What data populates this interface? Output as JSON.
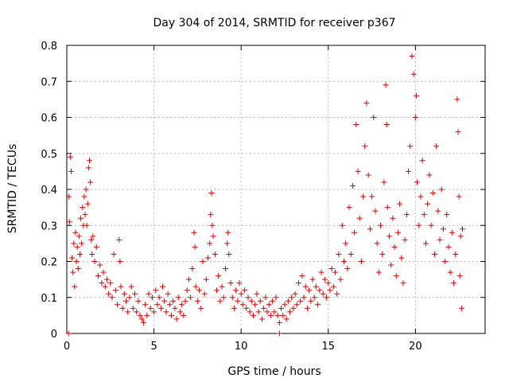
{
  "chart_data": {
    "type": "scatter",
    "title": "Day 304 of 2014, SRMTID for receiver p367",
    "xlabel": "GPS time / hours",
    "ylabel": "SRMTID / TECUs",
    "xlim": [
      0,
      24
    ],
    "ylim": [
      0,
      0.8
    ],
    "x_ticks": [
      0,
      5,
      10,
      15,
      20
    ],
    "y_ticks": [
      0,
      0.1,
      0.2,
      0.3,
      0.4,
      0.5,
      0.6,
      0.7,
      0.8
    ],
    "x_tick_labels": [
      "0",
      "5",
      "10",
      "15",
      "20"
    ],
    "y_tick_labels": [
      "0",
      "0.1",
      "0.2",
      "0.3",
      "0.4",
      "0.5",
      "0.6",
      "0.7",
      "0.8"
    ],
    "grid": true,
    "marker": "+",
    "colors": {
      "points": "#e00000",
      "grid": "#a0a0a0",
      "axes": "#000000"
    },
    "series": [
      {
        "name": "SRMTID",
        "points": [
          [
            0.1,
            0.0
          ],
          [
            0.12,
            0.38
          ],
          [
            0.15,
            0.31
          ],
          [
            0.2,
            0.49
          ],
          [
            0.25,
            0.45
          ],
          [
            0.3,
            0.21
          ],
          [
            0.35,
            0.17
          ],
          [
            0.4,
            0.25
          ],
          [
            0.45,
            0.13
          ],
          [
            0.5,
            0.28
          ],
          [
            0.55,
            0.2
          ],
          [
            0.6,
            0.24
          ],
          [
            0.65,
            0.18
          ],
          [
            0.7,
            0.27
          ],
          [
            0.75,
            0.22
          ],
          [
            0.8,
            0.32
          ],
          [
            0.85,
            0.25
          ],
          [
            0.9,
            0.35
          ],
          [
            0.95,
            0.3
          ],
          [
            1.0,
            0.38
          ],
          [
            1.05,
            0.33
          ],
          [
            1.1,
            0.4
          ],
          [
            1.15,
            0.3
          ],
          [
            1.2,
            0.36
          ],
          [
            1.25,
            0.46
          ],
          [
            1.3,
            0.48
          ],
          [
            1.35,
            0.42
          ],
          [
            1.4,
            0.26
          ],
          [
            1.45,
            0.22
          ],
          [
            1.5,
            0.27
          ],
          [
            1.6,
            0.2
          ],
          [
            1.7,
            0.24
          ],
          [
            1.8,
            0.16
          ],
          [
            1.9,
            0.19
          ],
          [
            2.0,
            0.14
          ],
          [
            2.1,
            0.17
          ],
          [
            2.2,
            0.13
          ],
          [
            2.3,
            0.15
          ],
          [
            2.4,
            0.11
          ],
          [
            2.5,
            0.14
          ],
          [
            2.6,
            0.1
          ],
          [
            2.7,
            0.22
          ],
          [
            2.8,
            0.12
          ],
          [
            2.9,
            0.08
          ],
          [
            3.0,
            0.26
          ],
          [
            3.05,
            0.2
          ],
          [
            3.1,
            0.13
          ],
          [
            3.2,
            0.07
          ],
          [
            3.3,
            0.11
          ],
          [
            3.4,
            0.09
          ],
          [
            3.5,
            0.06
          ],
          [
            3.6,
            0.1
          ],
          [
            3.7,
            0.13
          ],
          [
            3.8,
            0.07
          ],
          [
            3.9,
            0.11
          ],
          [
            4.0,
            0.06
          ],
          [
            4.1,
            0.09
          ],
          [
            4.2,
            0.05
          ],
          [
            4.3,
            0.04
          ],
          [
            4.4,
            0.03
          ],
          [
            4.5,
            0.08
          ],
          [
            4.6,
            0.05
          ],
          [
            4.7,
            0.11
          ],
          [
            4.8,
            0.07
          ],
          [
            4.9,
            0.1
          ],
          [
            5.0,
            0.06
          ],
          [
            5.1,
            0.12
          ],
          [
            5.2,
            0.08
          ],
          [
            5.3,
            0.1
          ],
          [
            5.4,
            0.07
          ],
          [
            5.5,
            0.13
          ],
          [
            5.6,
            0.09
          ],
          [
            5.7,
            0.06
          ],
          [
            5.8,
            0.11
          ],
          [
            5.9,
            0.08
          ],
          [
            6.0,
            0.05
          ],
          [
            6.1,
            0.09
          ],
          [
            6.2,
            0.07
          ],
          [
            6.3,
            0.04
          ],
          [
            6.4,
            0.1
          ],
          [
            6.5,
            0.06
          ],
          [
            6.6,
            0.08
          ],
          [
            6.7,
            0.05
          ],
          [
            6.8,
            0.09
          ],
          [
            6.9,
            0.12
          ],
          [
            7.0,
            0.15
          ],
          [
            7.1,
            0.1
          ],
          [
            7.2,
            0.18
          ],
          [
            7.3,
            0.28
          ],
          [
            7.35,
            0.24
          ],
          [
            7.4,
            0.13
          ],
          [
            7.5,
            0.09
          ],
          [
            7.6,
            0.12
          ],
          [
            7.7,
            0.07
          ],
          [
            7.8,
            0.2
          ],
          [
            7.9,
            0.11
          ],
          [
            8.0,
            0.15
          ],
          [
            8.1,
            0.21
          ],
          [
            8.2,
            0.25
          ],
          [
            8.25,
            0.33
          ],
          [
            8.3,
            0.39
          ],
          [
            8.35,
            0.3
          ],
          [
            8.4,
            0.27
          ],
          [
            8.5,
            0.22
          ],
          [
            8.6,
            0.12
          ],
          [
            8.7,
            0.16
          ],
          [
            8.8,
            0.09
          ],
          [
            8.9,
            0.13
          ],
          [
            9.0,
            0.1
          ],
          [
            9.1,
            0.18
          ],
          [
            9.2,
            0.25
          ],
          [
            9.25,
            0.28
          ],
          [
            9.3,
            0.22
          ],
          [
            9.4,
            0.14
          ],
          [
            9.5,
            0.1
          ],
          [
            9.6,
            0.07
          ],
          [
            9.7,
            0.12
          ],
          [
            9.8,
            0.09
          ],
          [
            9.9,
            0.14
          ],
          [
            10.0,
            0.11
          ],
          [
            10.1,
            0.08
          ],
          [
            10.2,
            0.12
          ],
          [
            10.3,
            0.07
          ],
          [
            10.4,
            0.1
          ],
          [
            10.5,
            0.06
          ],
          [
            10.6,
            0.09
          ],
          [
            10.7,
            0.05
          ],
          [
            10.8,
            0.08
          ],
          [
            10.9,
            0.11
          ],
          [
            11.0,
            0.06
          ],
          [
            11.1,
            0.09
          ],
          [
            11.2,
            0.04
          ],
          [
            11.3,
            0.07
          ],
          [
            11.4,
            0.1
          ],
          [
            11.5,
            0.06
          ],
          [
            11.6,
            0.08
          ],
          [
            11.7,
            0.05
          ],
          [
            11.8,
            0.09
          ],
          [
            11.9,
            0.06
          ],
          [
            12.0,
            0.1
          ],
          [
            12.1,
            0.05
          ],
          [
            12.2,
            0.03
          ],
          [
            12.3,
            0.07
          ],
          [
            12.4,
            0.05
          ],
          [
            12.5,
            0.08
          ],
          [
            12.6,
            0.04
          ],
          [
            12.7,
            0.09
          ],
          [
            12.8,
            0.06
          ],
          [
            12.9,
            0.1
          ],
          [
            13.0,
            0.07
          ],
          [
            13.1,
            0.11
          ],
          [
            13.2,
            0.08
          ],
          [
            13.3,
            0.14
          ],
          [
            13.4,
            0.09
          ],
          [
            13.5,
            0.16
          ],
          [
            13.6,
            0.1
          ],
          [
            13.7,
            0.13
          ],
          [
            13.8,
            0.07
          ],
          [
            13.9,
            0.12
          ],
          [
            14.0,
            0.09
          ],
          [
            14.1,
            0.15
          ],
          [
            14.2,
            0.1
          ],
          [
            14.3,
            0.13
          ],
          [
            14.4,
            0.08
          ],
          [
            14.5,
            0.12
          ],
          [
            14.6,
            0.17
          ],
          [
            14.7,
            0.11
          ],
          [
            14.8,
            0.15
          ],
          [
            14.9,
            0.1
          ],
          [
            15.0,
            0.14
          ],
          [
            15.1,
            0.12
          ],
          [
            15.2,
            0.18
          ],
          [
            15.3,
            0.13
          ],
          [
            15.4,
            0.17
          ],
          [
            15.5,
            0.11
          ],
          [
            15.6,
            0.22
          ],
          [
            15.7,
            0.15
          ],
          [
            15.8,
            0.3
          ],
          [
            15.9,
            0.2
          ],
          [
            16.0,
            0.25
          ],
          [
            16.1,
            0.18
          ],
          [
            16.2,
            0.35
          ],
          [
            16.3,
            0.22
          ],
          [
            16.4,
            0.41
          ],
          [
            16.5,
            0.28
          ],
          [
            16.6,
            0.58
          ],
          [
            16.7,
            0.45
          ],
          [
            16.8,
            0.32
          ],
          [
            16.9,
            0.2
          ],
          [
            17.0,
            0.38
          ],
          [
            17.1,
            0.52
          ],
          [
            17.2,
            0.64
          ],
          [
            17.3,
            0.44
          ],
          [
            17.4,
            0.29
          ],
          [
            17.5,
            0.38
          ],
          [
            17.6,
            0.6
          ],
          [
            17.7,
            0.34
          ],
          [
            17.8,
            0.25
          ],
          [
            17.9,
            0.17
          ],
          [
            18.0,
            0.3
          ],
          [
            18.1,
            0.22
          ],
          [
            18.2,
            0.42
          ],
          [
            18.3,
            0.69
          ],
          [
            18.35,
            0.58
          ],
          [
            18.4,
            0.35
          ],
          [
            18.5,
            0.27
          ],
          [
            18.6,
            0.19
          ],
          [
            18.7,
            0.32
          ],
          [
            18.8,
            0.24
          ],
          [
            18.9,
            0.16
          ],
          [
            19.0,
            0.28
          ],
          [
            19.1,
            0.36
          ],
          [
            19.2,
            0.21
          ],
          [
            19.3,
            0.14
          ],
          [
            19.4,
            0.26
          ],
          [
            19.5,
            0.33
          ],
          [
            19.6,
            0.45
          ],
          [
            19.7,
            0.52
          ],
          [
            19.8,
            0.77
          ],
          [
            19.9,
            0.72
          ],
          [
            20.0,
            0.6
          ],
          [
            20.05,
            0.66
          ],
          [
            20.1,
            0.42
          ],
          [
            20.2,
            0.3
          ],
          [
            20.3,
            0.38
          ],
          [
            20.4,
            0.48
          ],
          [
            20.5,
            0.33
          ],
          [
            20.6,
            0.25
          ],
          [
            20.7,
            0.36
          ],
          [
            20.8,
            0.44
          ],
          [
            20.9,
            0.3
          ],
          [
            21.0,
            0.39
          ],
          [
            21.1,
            0.22
          ],
          [
            21.2,
            0.52
          ],
          [
            21.3,
            0.34
          ],
          [
            21.4,
            0.26
          ],
          [
            21.5,
            0.4
          ],
          [
            21.6,
            0.29
          ],
          [
            21.7,
            0.2
          ],
          [
            21.8,
            0.33
          ],
          [
            21.9,
            0.24
          ],
          [
            22.0,
            0.17
          ],
          [
            22.1,
            0.28
          ],
          [
            22.2,
            0.14
          ],
          [
            22.3,
            0.22
          ],
          [
            22.4,
            0.65
          ],
          [
            22.45,
            0.56
          ],
          [
            22.5,
            0.38
          ],
          [
            22.55,
            0.16
          ],
          [
            22.6,
            0.27
          ],
          [
            22.65,
            0.07
          ],
          [
            22.7,
            0.29
          ],
          [
            12.2,
            0.0
          ]
        ]
      }
    ]
  }
}
